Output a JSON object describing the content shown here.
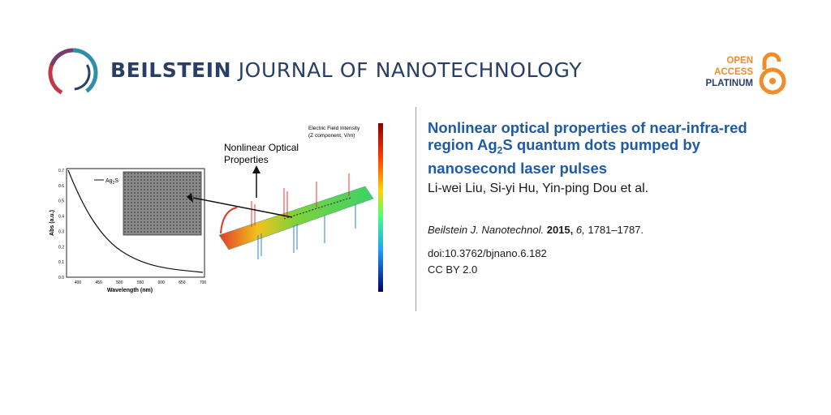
{
  "header": {
    "journal_bold": "BEILSTEIN",
    "journal_rest": "JOURNAL OF NANOTECHNOLOGY",
    "oa_line1": "OPEN",
    "oa_line2": "ACCESS",
    "oa_line3": "PLATINUM"
  },
  "colors": {
    "brand_blue": "#2a3f66",
    "title_blue": "#1f5aa6",
    "oa_orange": "#f28c28",
    "logo_red": "#c0394b",
    "logo_teal": "#2f8fa8"
  },
  "article": {
    "title_part1": "Nonlinear optical properties of near-infra-red region Ag",
    "title_sub": "2",
    "title_part2": "S quantum dots pumped by nanosecond laser pulses",
    "authors": "Li-wei Liu, Si-yi Hu, Yin-ping Dou et al.",
    "journal_abbr": "Beilstein J. Nanotechnol.",
    "year": "2015,",
    "volume": "6,",
    "pages": "1781–1787.",
    "doi": "doi:10.3762/bjnano.6.182",
    "license": "CC BY 2.0"
  },
  "figure": {
    "annotation_line1": "Nonlinear Optical",
    "annotation_line2": "Properties",
    "field_title_line1": "Electric Field Intensity",
    "field_title_line2": "(Z component, V/m)",
    "legend_label": "Ag",
    "legend_sub": "2",
    "legend_label2": "S",
    "xlabel": "Wavelength (nm)",
    "ylabel": "Abs (a.u.)",
    "x_ticks": [
      "400",
      "450",
      "500",
      "550",
      "600",
      "650",
      "700"
    ],
    "y_ticks": [
      "0.0",
      "0.1",
      "0.2",
      "0.3",
      "0.4",
      "0.5",
      "0.6",
      "0.7"
    ]
  }
}
